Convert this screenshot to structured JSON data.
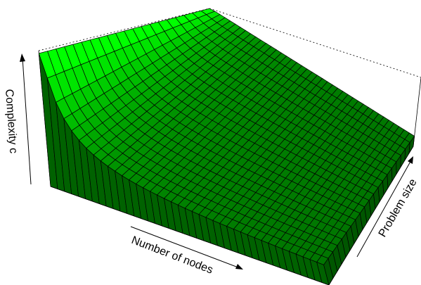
{
  "chart_data": {
    "type": "surface3d",
    "title": "",
    "xlabel": "Number of nodes",
    "ylabel": "Problem size",
    "zlabel": "Complexity c",
    "ticks": false,
    "grid": false,
    "model": "c = 1 / nodes (decreasing in nodes, near-constant in problem size)",
    "surface_color_high": "#00ff00",
    "surface_color_low": "#003300",
    "mesh_color": "#000000",
    "grid_steps": {
      "nodes": 40,
      "problem_size": 20
    }
  }
}
